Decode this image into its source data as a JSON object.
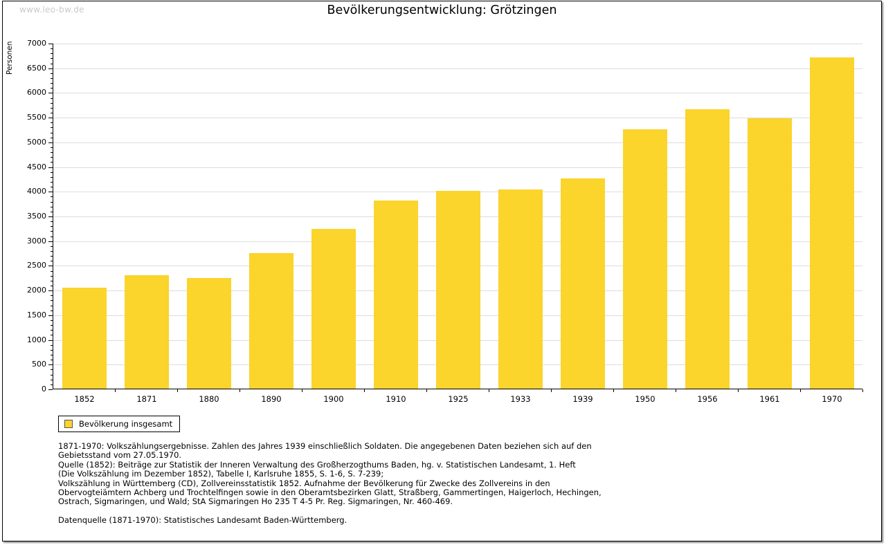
{
  "page": {
    "watermark": "www.leo-bw.de",
    "title": "Bevölkerungsentwicklung: Grötzingen"
  },
  "colors": {
    "bar_fill": "#FBD42C",
    "legend_swatch_fill": "#FBD42C",
    "legend_swatch_border": "#555555",
    "gridline": "#DCDCDC",
    "axis": "#000000",
    "watermark_text": "#C9C9C9"
  },
  "chart_data": {
    "type": "bar",
    "title": "Bevölkerungsentwicklung: Grötzingen",
    "xlabel": "",
    "ylabel": "Personen",
    "categories": [
      "1852",
      "1871",
      "1880",
      "1890",
      "1900",
      "1910",
      "1925",
      "1933",
      "1939",
      "1950",
      "1956",
      "1961",
      "1970"
    ],
    "values": [
      2040,
      2300,
      2240,
      2750,
      3240,
      3810,
      4010,
      4030,
      4250,
      5250,
      5660,
      5470,
      6700
    ],
    "ylim": [
      0,
      7000
    ],
    "y_major_step": 500,
    "y_minor_step": 100,
    "grid": true,
    "legend_entries": [
      "Bevölkerung insgesamt"
    ],
    "legend_position": "bottom-left"
  },
  "legend": {
    "label": "Bevölkerung insgesamt"
  },
  "footnotes": {
    "lines": [
      "1871-1970: Volkszählungsergebnisse. Zahlen des Jahres 1939 einschließlich Soldaten. Die angegebenen Daten beziehen sich auf den",
      "Gebietsstand vom 27.05.1970.",
      "Quelle (1852): Beiträge zur Statistik der Inneren Verwaltung des Großherzogthums Baden, hg. v. Statistischen Landesamt, 1. Heft",
      "(Die Volkszählung im Dezember 1852), Tabelle I, Karlsruhe 1855, S. 1-6, S. 7-239;",
      "Volkszählung in Württemberg (CD), Zollvereinsstatistik 1852. Aufnahme der Bevölkerung für Zwecke des Zollvereins in den",
      "Obervogteiämtern Achberg und Trochtelfingen sowie in den Oberamtsbezirken Glatt, Straßberg, Gammertingen, Haigerloch, Hechingen,",
      "Ostrach, Sigmaringen, und Wald; StA Sigmaringen Ho 235 T 4-5 Pr. Reg. Sigmaringen, Nr. 460-469.",
      "",
      "Datenquelle (1871-1970): Statistisches Landesamt Baden-Württemberg."
    ]
  }
}
